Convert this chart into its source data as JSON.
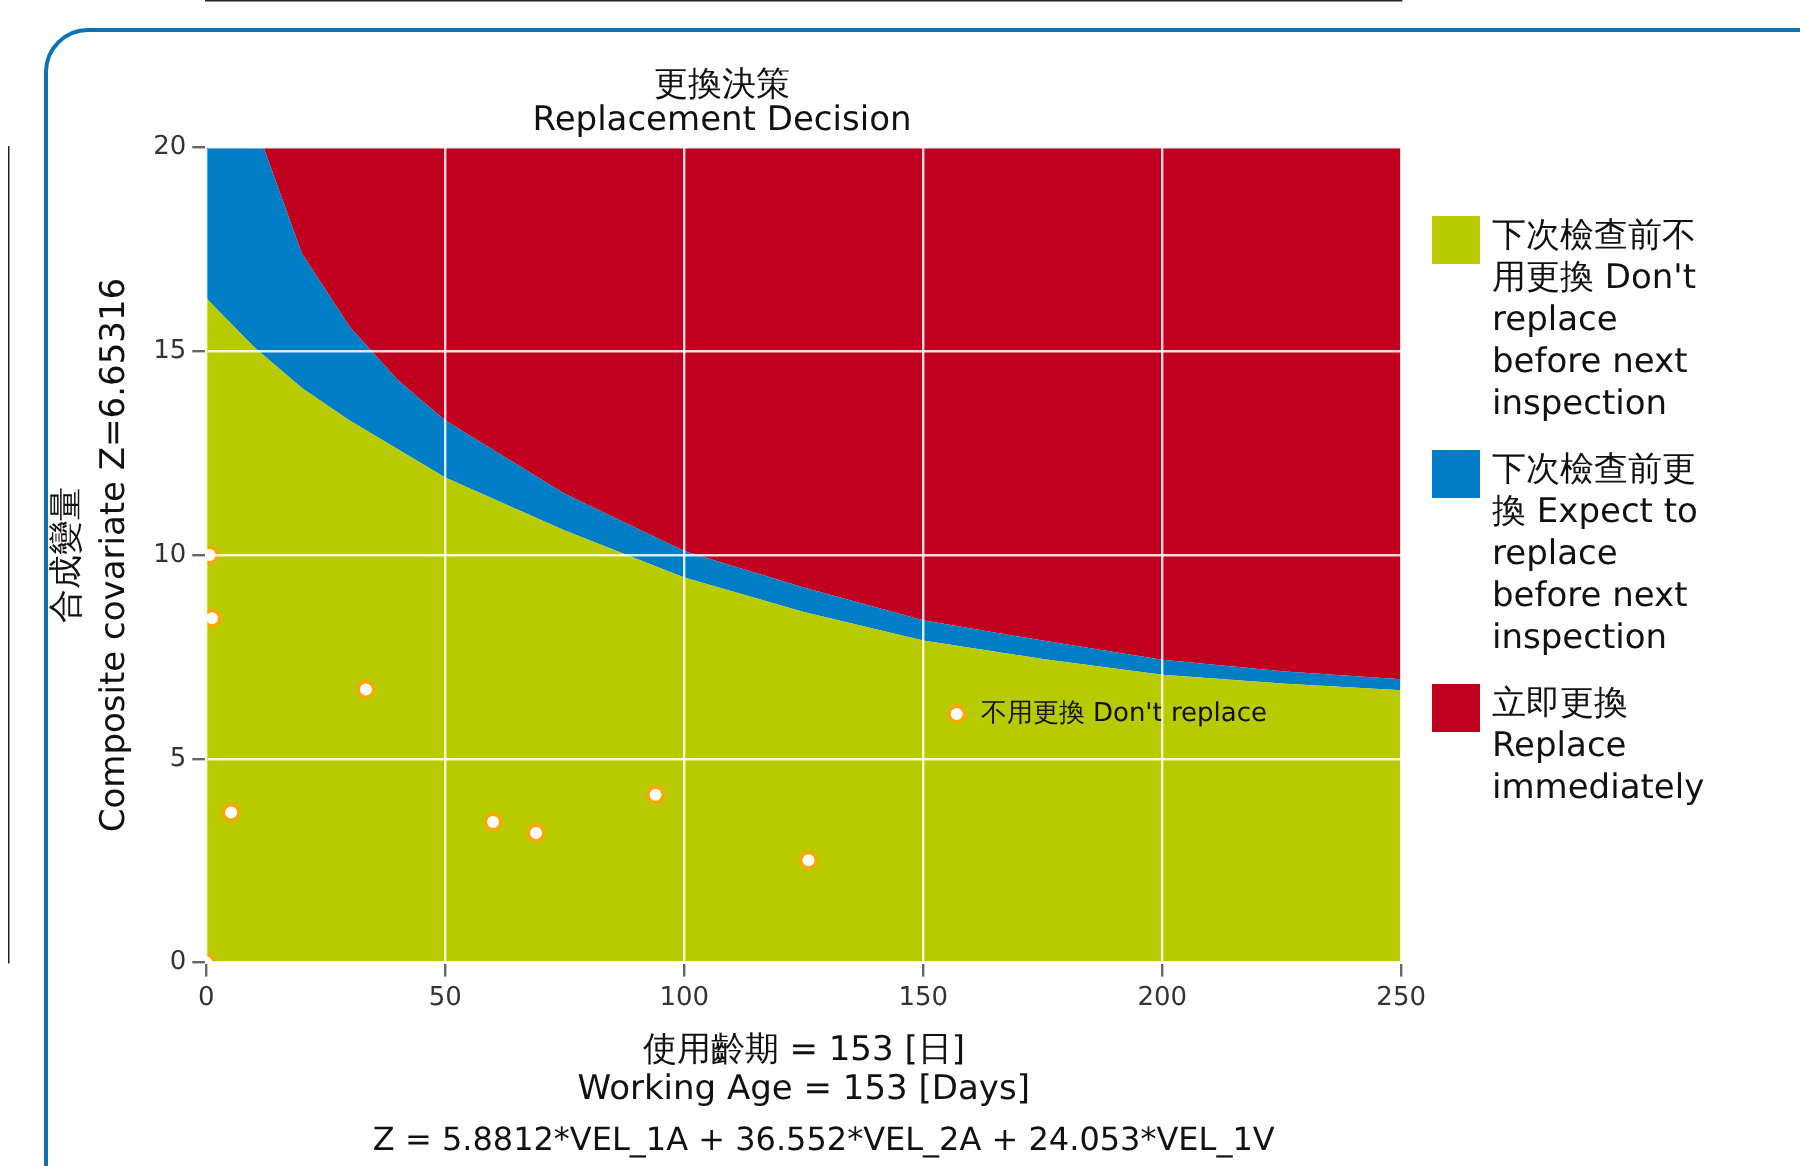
{
  "chart_data": {
    "type": "area",
    "title": "更換決策\nReplacement Decision",
    "xlabel": "使用齡期 = 153 [日]\nWorking Age = 153 [Days]",
    "ylabel": "合成變量\nComposite covariate Z=6.65316",
    "annotations": [
      "Z = 5.8812*VEL_1A + 36.552*VEL_2A + 24.053*VEL_1V",
      {
        "text": "不用更換 Don't replace",
        "x": 157,
        "y": 6.1
      }
    ],
    "stacked": true,
    "x": [
      0,
      5,
      10,
      12,
      20,
      30,
      40,
      50,
      75,
      100,
      125,
      150,
      175,
      200,
      225,
      250
    ],
    "series": [
      {
        "name": "下次檢查前不用更換 Don't replace before next inspection",
        "color": "#b8cb00",
        "values": [
          16.3,
          15.7,
          15.1,
          14.9,
          14.1,
          13.3,
          12.6,
          11.9,
          10.6,
          9.45,
          8.6,
          7.9,
          7.45,
          7.06,
          6.85,
          6.68
        ]
      },
      {
        "name": "下次檢查前更換 Expect to replace before next inspection",
        "color": "#007ec5",
        "values": [
          3.7,
          4.3,
          4.9,
          5.1,
          3.3,
          2.3,
          1.7,
          1.4,
          0.9,
          0.65,
          0.6,
          0.5,
          0.45,
          0.37,
          0.3,
          0.27
        ]
      },
      {
        "name": "立即更換 Replace immediately",
        "color": "#c1001f",
        "values": [
          0,
          0,
          0,
          0,
          2.6,
          4.4,
          5.7,
          6.7,
          8.5,
          9.9,
          10.8,
          11.6,
          12.1,
          12.57,
          12.85,
          13.05
        ]
      },
      {
        "type": "scatter",
        "color": "#ffffff",
        "marker": "circle",
        "x": [
          0.7,
          1.2,
          33.4,
          5.2,
          60,
          69,
          94,
          126,
          0,
          157
        ],
        "values": [
          10,
          8.45,
          6.7,
          3.68,
          3.45,
          3.18,
          4.12,
          2.51,
          0,
          6.1
        ]
      }
    ],
    "xlim": [
      0,
      250
    ],
    "ylim": [
      0,
      20
    ],
    "xticks": [
      0,
      50,
      100,
      150,
      200,
      250
    ],
    "yticks": [
      0,
      5,
      10,
      15,
      20
    ],
    "grid": true,
    "legend": "right"
  }
}
